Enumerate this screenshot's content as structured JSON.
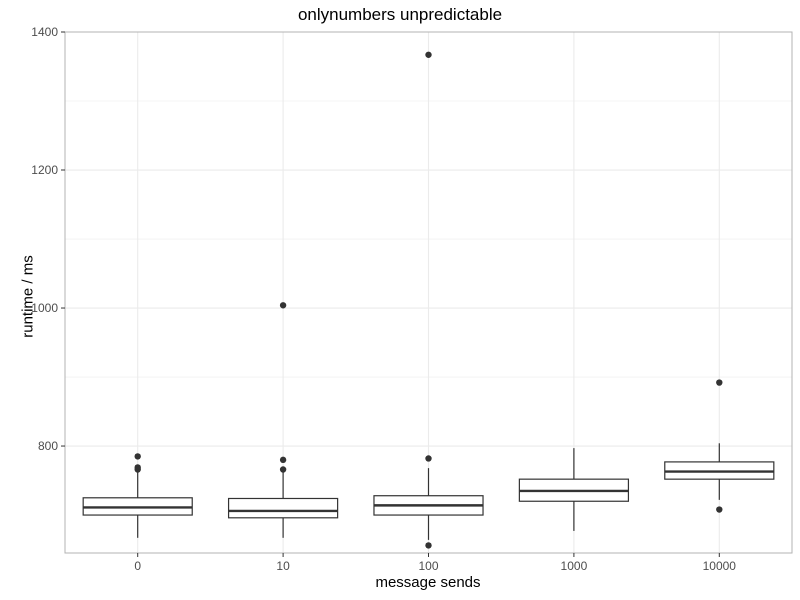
{
  "chart_data": {
    "type": "boxplot",
    "title": "onlynumbers unpredictable",
    "xlabel": "message sends",
    "ylabel": "runtime / ms",
    "ylim": [
      645,
      1400
    ],
    "yticks": [
      800,
      1000,
      1200,
      1400
    ],
    "grid": true,
    "categories": [
      "0",
      "10",
      "100",
      "1000",
      "10000"
    ],
    "boxes": [
      {
        "category": "0",
        "whisker_low": 667,
        "q1": 700,
        "median": 711,
        "q3": 725,
        "whisker_high": 763,
        "outliers": [
          785,
          769,
          766
        ]
      },
      {
        "category": "10",
        "whisker_low": 667,
        "q1": 696,
        "median": 706,
        "q3": 724,
        "whisker_high": 763,
        "outliers": [
          1004,
          780,
          766
        ]
      },
      {
        "category": "100",
        "whisker_low": 664,
        "q1": 700,
        "median": 714,
        "q3": 728,
        "whisker_high": 768,
        "outliers": [
          1367,
          782,
          656
        ]
      },
      {
        "category": "1000",
        "whisker_low": 677,
        "q1": 720,
        "median": 735,
        "q3": 752,
        "whisker_high": 797,
        "outliers": []
      },
      {
        "category": "10000",
        "whisker_low": 722,
        "q1": 752,
        "median": 763,
        "q3": 777,
        "whisker_high": 804,
        "outliers": [
          892,
          708
        ]
      }
    ],
    "colors": {
      "box_fill": "#ffffff",
      "box_stroke": "#333333",
      "grid": "#ebebeb",
      "panel_border": "#b3b3b3",
      "outlier": "#333333"
    }
  }
}
